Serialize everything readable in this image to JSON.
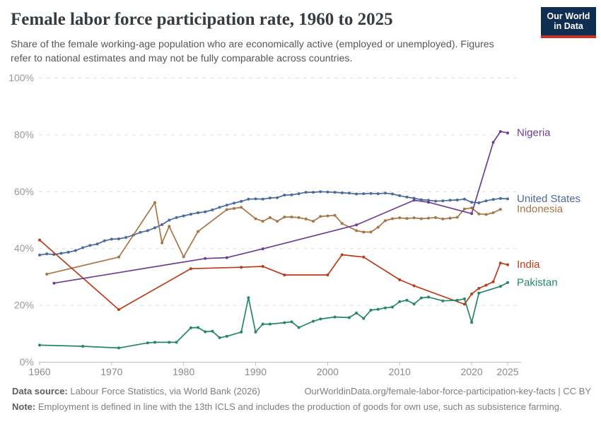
{
  "header": {
    "title": "Female labor force participation rate, 1960 to 2025",
    "subtitle": "Share of the female working-age population who are economically active (employed or unemployed). Figures refer to national estimates and may not be fully comparable across countries.",
    "logo": {
      "line1": "Our World",
      "line2": "in Data"
    }
  },
  "chart_data": {
    "type": "line",
    "title": "Female labor force participation rate, 1960 to 2025",
    "xlabel": "",
    "ylabel": "",
    "unit": "%",
    "xlim": [
      1960,
      2025
    ],
    "ylim": [
      0,
      100
    ],
    "grid": true,
    "legend_position": "right-edge-labels",
    "x_ticks": [
      1960,
      1970,
      1980,
      1990,
      2000,
      2010,
      2020,
      2025
    ],
    "y_ticks": [
      0,
      20,
      40,
      60,
      80,
      100
    ],
    "y_tick_suffix": "%",
    "colors": {
      "grid": "#dddddd",
      "axis": "#bbbbbb",
      "tick_label": "#8a8a8a"
    },
    "series": [
      {
        "name": "United States",
        "color": "#4C6A9C",
        "points": [
          [
            1960,
            37.7
          ],
          [
            1961,
            38.1
          ],
          [
            1962,
            37.9
          ],
          [
            1963,
            38.3
          ],
          [
            1964,
            38.7
          ],
          [
            1965,
            39.3
          ],
          [
            1966,
            40.3
          ],
          [
            1967,
            41.1
          ],
          [
            1968,
            41.6
          ],
          [
            1969,
            42.7
          ],
          [
            1970,
            43.3
          ],
          [
            1971,
            43.4
          ],
          [
            1972,
            43.9
          ],
          [
            1973,
            44.7
          ],
          [
            1974,
            45.7
          ],
          [
            1975,
            46.3
          ],
          [
            1976,
            47.3
          ],
          [
            1977,
            48.4
          ],
          [
            1978,
            50.0
          ],
          [
            1979,
            50.9
          ],
          [
            1980,
            51.5
          ],
          [
            1981,
            52.1
          ],
          [
            1982,
            52.6
          ],
          [
            1983,
            52.9
          ],
          [
            1984,
            53.6
          ],
          [
            1985,
            54.5
          ],
          [
            1986,
            55.3
          ],
          [
            1987,
            56.0
          ],
          [
            1988,
            56.6
          ],
          [
            1989,
            57.4
          ],
          [
            1990,
            57.5
          ],
          [
            1991,
            57.4
          ],
          [
            1992,
            57.8
          ],
          [
            1993,
            57.9
          ],
          [
            1994,
            58.8
          ],
          [
            1995,
            58.9
          ],
          [
            1996,
            59.3
          ],
          [
            1997,
            59.8
          ],
          [
            1998,
            59.8
          ],
          [
            1999,
            60.0
          ],
          [
            2000,
            59.9
          ],
          [
            2001,
            59.8
          ],
          [
            2002,
            59.6
          ],
          [
            2003,
            59.5
          ],
          [
            2004,
            59.2
          ],
          [
            2005,
            59.3
          ],
          [
            2006,
            59.4
          ],
          [
            2007,
            59.3
          ],
          [
            2008,
            59.5
          ],
          [
            2009,
            59.2
          ],
          [
            2010,
            58.6
          ],
          [
            2011,
            58.1
          ],
          [
            2012,
            57.7
          ],
          [
            2013,
            57.2
          ],
          [
            2014,
            57.0
          ],
          [
            2015,
            56.7
          ],
          [
            2016,
            56.8
          ],
          [
            2017,
            57.0
          ],
          [
            2018,
            57.1
          ],
          [
            2019,
            57.4
          ],
          [
            2020,
            56.3
          ],
          [
            2021,
            56.1
          ],
          [
            2022,
            56.8
          ],
          [
            2023,
            57.3
          ],
          [
            2024,
            57.6
          ],
          [
            2025,
            57.5
          ]
        ]
      },
      {
        "name": "Indonesia",
        "color": "#A87544",
        "points": [
          [
            1961,
            31.0
          ],
          [
            1971,
            37.0
          ],
          [
            1976,
            56.2
          ],
          [
            1977,
            42.0
          ],
          [
            1978,
            47.8
          ],
          [
            1980,
            37.1
          ],
          [
            1982,
            46.0
          ],
          [
            1986,
            53.7
          ],
          [
            1987,
            54.1
          ],
          [
            1988,
            54.5
          ],
          [
            1990,
            50.5
          ],
          [
            1991,
            49.6
          ],
          [
            1992,
            50.9
          ],
          [
            1993,
            49.6
          ],
          [
            1994,
            51.1
          ],
          [
            1995,
            51.1
          ],
          [
            1996,
            50.9
          ],
          [
            1997,
            50.4
          ],
          [
            1998,
            49.6
          ],
          [
            1999,
            51.3
          ],
          [
            2000,
            51.5
          ],
          [
            2001,
            51.7
          ],
          [
            2002,
            48.8
          ],
          [
            2004,
            46.3
          ],
          [
            2005,
            45.8
          ],
          [
            2006,
            45.8
          ],
          [
            2007,
            47.5
          ],
          [
            2008,
            49.8
          ],
          [
            2009,
            50.5
          ],
          [
            2010,
            50.8
          ],
          [
            2011,
            50.6
          ],
          [
            2012,
            50.8
          ],
          [
            2013,
            50.5
          ],
          [
            2014,
            50.7
          ],
          [
            2015,
            50.9
          ],
          [
            2016,
            50.4
          ],
          [
            2017,
            50.7
          ],
          [
            2018,
            51.0
          ],
          [
            2019,
            53.9
          ],
          [
            2020,
            54.3
          ],
          [
            2021,
            52.2
          ],
          [
            2022,
            52.0
          ],
          [
            2023,
            52.6
          ],
          [
            2024,
            53.8
          ]
        ]
      },
      {
        "name": "India",
        "color": "#BB3B18",
        "points": [
          [
            1960,
            43.0
          ],
          [
            1971,
            18.5
          ],
          [
            1981,
            32.9
          ],
          [
            1988,
            33.4
          ],
          [
            1991,
            33.7
          ],
          [
            1994,
            30.7
          ],
          [
            2000,
            30.7
          ],
          [
            2002,
            37.8
          ],
          [
            2005,
            37.0
          ],
          [
            2010,
            29.0
          ],
          [
            2012,
            26.9
          ],
          [
            2019,
            20.4
          ],
          [
            2020,
            24.0
          ],
          [
            2021,
            26.0
          ],
          [
            2022,
            27.1
          ],
          [
            2023,
            28.3
          ],
          [
            2024,
            34.9
          ],
          [
            2025,
            34.3
          ]
        ]
      },
      {
        "name": "Pakistan",
        "color": "#23866B",
        "points": [
          [
            1960,
            6.0
          ],
          [
            1966,
            5.6
          ],
          [
            1971,
            5.0
          ],
          [
            1975,
            6.8
          ],
          [
            1976,
            7.0
          ],
          [
            1978,
            7.0
          ],
          [
            1979,
            7.0
          ],
          [
            1981,
            12.1
          ],
          [
            1982,
            12.2
          ],
          [
            1983,
            10.7
          ],
          [
            1984,
            10.9
          ],
          [
            1985,
            8.6
          ],
          [
            1986,
            9.1
          ],
          [
            1988,
            10.6
          ],
          [
            1989,
            22.7
          ],
          [
            1990,
            10.6
          ],
          [
            1991,
            13.4
          ],
          [
            1992,
            13.4
          ],
          [
            1994,
            13.9
          ],
          [
            1995,
            14.2
          ],
          [
            1996,
            12.2
          ],
          [
            1998,
            14.4
          ],
          [
            1999,
            15.2
          ],
          [
            2001,
            15.9
          ],
          [
            2003,
            15.7
          ],
          [
            2004,
            17.3
          ],
          [
            2005,
            15.4
          ],
          [
            2006,
            18.3
          ],
          [
            2007,
            18.6
          ],
          [
            2008,
            19.1
          ],
          [
            2009,
            19.4
          ],
          [
            2010,
            21.3
          ],
          [
            2011,
            21.8
          ],
          [
            2012,
            20.5
          ],
          [
            2013,
            22.6
          ],
          [
            2014,
            22.9
          ],
          [
            2016,
            21.6
          ],
          [
            2018,
            21.8
          ],
          [
            2019,
            22.3
          ],
          [
            2020,
            14.0
          ],
          [
            2021,
            24.3
          ],
          [
            2024,
            26.7
          ],
          [
            2025,
            28.0
          ]
        ]
      },
      {
        "name": "Nigeria",
        "color": "#6D3E91",
        "points": [
          [
            1962,
            27.8
          ],
          [
            1983,
            36.5
          ],
          [
            1986,
            36.8
          ],
          [
            1991,
            39.9
          ],
          [
            2004,
            48.3
          ],
          [
            2012,
            57.0
          ],
          [
            2014,
            56.3
          ],
          [
            2020,
            52.3
          ],
          [
            2023,
            77.4
          ],
          [
            2024,
            81.2
          ],
          [
            2025,
            80.7
          ]
        ]
      }
    ]
  },
  "footer": {
    "datasource_label": "Data source:",
    "datasource_text": " Labour Force Statistics, via World Bank (2026)",
    "link_text": "OurWorldinData.org/female-labor-force-participation-key-facts | CC BY",
    "note_label": "Note:",
    "note_text": " Employment is defined in line with the 13th ICLS and includes the production of goods for own use, such as subsistence farming."
  }
}
